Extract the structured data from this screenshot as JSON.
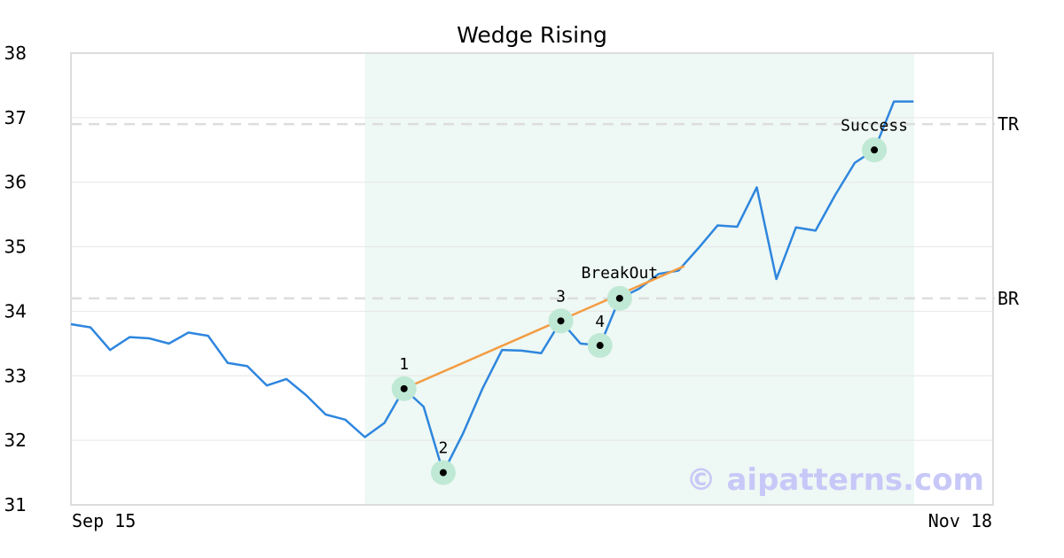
{
  "chart_data": {
    "type": "line",
    "title": "Wedge Rising",
    "x_tick_labels": [
      "Sep 15",
      "Nov 18"
    ],
    "ylim": [
      31,
      38
    ],
    "y_ticks": [
      31,
      32,
      33,
      34,
      35,
      36,
      37,
      38
    ],
    "grid": "horizontal",
    "colors": {
      "price": "#2e86de",
      "wedge": "#f39c42",
      "highlight": "#eef8f4",
      "marker_halo": "#bfe9d4",
      "level_line": "#dddddd"
    },
    "series": [
      {
        "values": [
          33.8,
          33.75,
          33.4,
          33.6,
          33.58,
          33.5,
          33.67,
          33.62,
          33.2,
          33.15,
          32.85,
          32.95,
          32.7,
          32.4,
          32.32,
          32.05,
          32.27,
          32.8,
          32.52,
          31.5,
          32.1,
          32.8,
          33.4,
          33.39,
          33.35,
          33.85,
          33.5,
          33.47,
          34.2,
          34.35,
          34.58,
          34.63,
          34.97,
          35.33,
          35.31,
          35.92,
          34.5,
          35.3,
          35.25,
          35.8,
          36.3,
          36.5,
          37.25,
          37.25
        ]
      }
    ],
    "highlight_range_index": [
      15,
      43
    ],
    "wedge_line": {
      "from": [
        17,
        32.8
      ],
      "to": [
        31.3,
        34.7
      ]
    },
    "levels": [
      {
        "label": "TR",
        "value": 36.9
      },
      {
        "label": "BR",
        "value": 34.2
      }
    ],
    "points": [
      {
        "label": "1",
        "index": 17,
        "value": 32.8
      },
      {
        "label": "2",
        "index": 19,
        "value": 31.5
      },
      {
        "label": "3",
        "index": 25,
        "value": 33.85
      },
      {
        "label": "4",
        "index": 27,
        "value": 33.47
      },
      {
        "label": "BreakOut",
        "index": 28,
        "value": 34.2
      },
      {
        "label": "Success",
        "index": 41,
        "value": 36.5
      }
    ],
    "watermark": "© aipatterns.com"
  }
}
